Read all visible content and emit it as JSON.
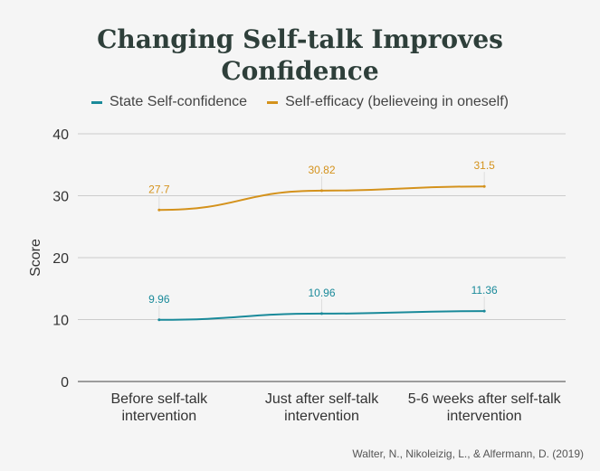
{
  "chart_data": {
    "type": "line",
    "title": "Changing Self-talk Improves Confidence",
    "title_lines": [
      "Changing Self-talk Improves",
      "Confidence"
    ],
    "ylabel": "Score",
    "xlabel": "",
    "ylim": [
      0,
      40
    ],
    "yticks": [
      "0",
      "10",
      "20",
      "30",
      "40"
    ],
    "grid": true,
    "legend_position": "top",
    "categories": [
      [
        "Before self-talk",
        "intervention"
      ],
      [
        "Just after self-talk",
        "intervention"
      ],
      [
        "5-6 weeks after self-talk",
        "intervention"
      ]
    ],
    "series": [
      {
        "name": "State Self-confidence",
        "color": "#1a8a9a",
        "values": [
          9.96,
          10.96,
          11.36
        ],
        "labels": [
          "9.96",
          "10.96",
          "11.36"
        ]
      },
      {
        "name": "Self-efficacy (believeing in oneself)",
        "color": "#d4921c",
        "values": [
          27.7,
          30.82,
          31.5
        ],
        "labels": [
          "27.7",
          "30.82",
          "31.5"
        ]
      }
    ]
  },
  "source": "Walter, N., Nikoleizig, L., & Alfermann, D. (2019)",
  "colors": {
    "grid": "#cccccc",
    "axis_text": "#333333"
  }
}
